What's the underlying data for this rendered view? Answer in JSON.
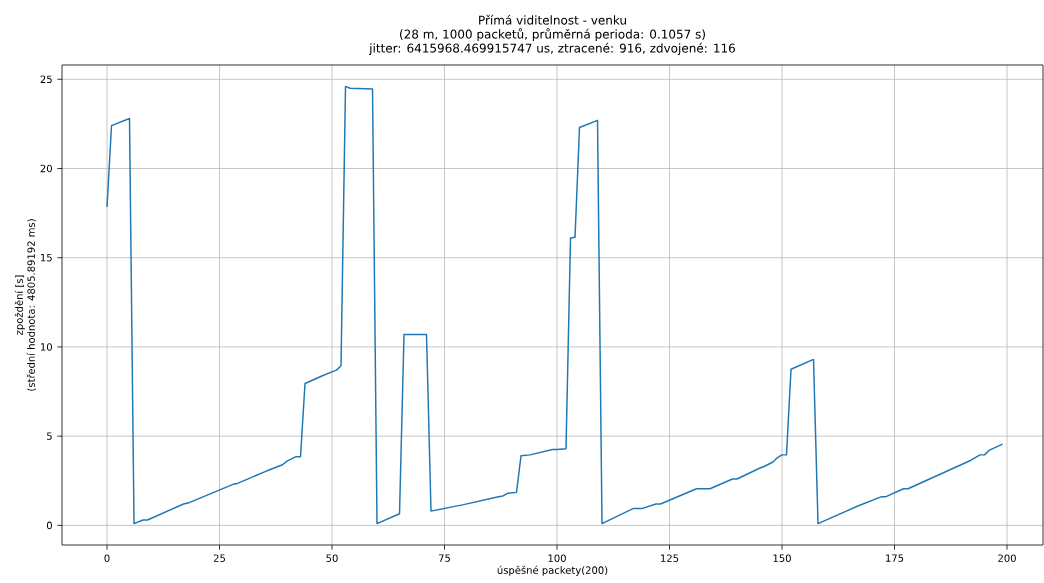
{
  "chart_data": {
    "type": "line",
    "title": "Přímá viditelnost - venku\n(28 m, 1000 packetů, průměrná perioda: 0.1057 s)\njitter: 6415968.469915747 us, ztracené: 916, zdvojené: 116",
    "xlabel": "úspěšné packety(200)",
    "ylabel": "zpoždění [s]\n(střední hodnota: 4805.89192 ms)",
    "x": [
      0,
      1,
      5,
      6,
      8,
      9,
      17,
      18,
      28,
      29,
      35,
      36,
      39,
      40,
      42,
      43,
      44,
      48,
      50,
      51,
      52,
      53,
      54,
      59,
      60,
      65,
      66,
      71,
      72,
      77,
      79,
      87,
      88,
      89,
      91,
      92,
      94,
      99,
      100,
      102,
      103,
      104,
      105,
      109,
      110,
      117,
      119,
      122,
      123,
      131,
      134,
      139,
      140,
      145,
      146,
      148,
      149,
      150,
      151,
      152,
      157,
      158,
      167,
      172,
      173,
      177,
      178,
      192,
      194,
      195,
      196,
      199
    ],
    "series": [
      {
        "color": "#1f77b4",
        "values": [
          17.85,
          22.4,
          22.8,
          0.1,
          0.3,
          0.3,
          1.2,
          1.25,
          2.3,
          2.35,
          3.0,
          3.1,
          3.4,
          3.6,
          3.85,
          3.85,
          7.95,
          8.4,
          8.6,
          8.7,
          8.95,
          24.6,
          24.5,
          24.45,
          0.1,
          0.65,
          10.7,
          10.7,
          0.8,
          1.05,
          1.15,
          1.6,
          1.65,
          1.8,
          1.85,
          3.9,
          3.95,
          4.25,
          4.25,
          4.3,
          16.1,
          16.15,
          22.3,
          22.7,
          0.1,
          0.95,
          0.95,
          1.2,
          1.2,
          2.05,
          2.05,
          2.6,
          2.6,
          3.2,
          3.3,
          3.55,
          3.8,
          3.95,
          3.95,
          8.75,
          9.3,
          0.1,
          1.1,
          1.6,
          1.6,
          2.05,
          2.05,
          3.65,
          3.95,
          3.95,
          4.2,
          4.55
        ]
      }
    ],
    "xlim": [
      -10,
      208
    ],
    "ylim": [
      -1.1,
      25.8
    ],
    "xticks": [
      0,
      25,
      50,
      75,
      100,
      125,
      150,
      175,
      200
    ],
    "yticks": [
      0,
      5,
      10,
      15,
      20,
      25
    ],
    "grid": true,
    "marker": "none",
    "line_style": "solid"
  }
}
